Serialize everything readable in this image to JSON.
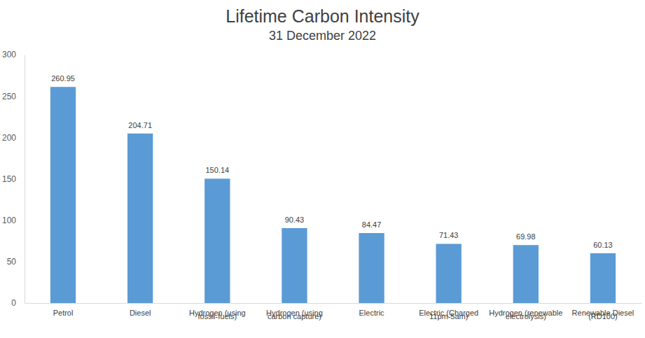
{
  "chart_data": {
    "type": "bar",
    "title": "Lifetime Carbon Intensity",
    "subtitle": "31 December 2022",
    "categories": [
      "Petrol",
      "Diesel",
      "Hydrogen (using fossil-fuels)",
      "Hydrogen (using carbon capture)",
      "Electric",
      "Electric (Charged 11pm-5am)",
      "Hydrogen (renewable electrolysis)",
      "Renewable Diesel (RD100)"
    ],
    "values": [
      260.95,
      204.71,
      150.14,
      90.43,
      84.47,
      71.43,
      69.98,
      60.13
    ],
    "color": "#5b9bd5",
    "ylim": [
      0,
      300
    ],
    "yticks": [
      0,
      50,
      100,
      150,
      200,
      250,
      300
    ],
    "grid": false,
    "data_labels": true
  }
}
